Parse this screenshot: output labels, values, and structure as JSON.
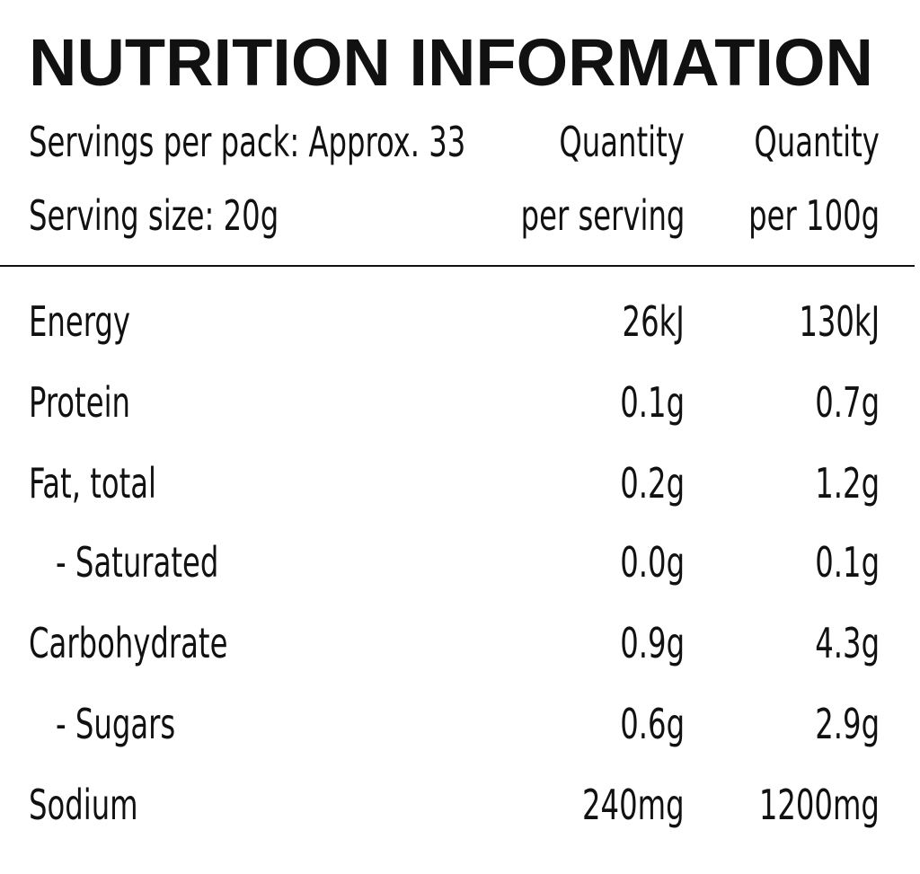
{
  "title": "NUTRITION INFORMATION",
  "header": {
    "servings_per_pack": "Servings per pack: Approx. 33",
    "serving_size": "Serving size: 20g",
    "col_per_serving_line1": "Quantity",
    "col_per_serving_line2": "per serving",
    "col_per_100g_line1": "Quantity",
    "col_per_100g_line2": "per 100g"
  },
  "rows": [
    {
      "label": "Energy",
      "per_serving": "26kJ",
      "per_100g": "130kJ"
    },
    {
      "label": "Protein",
      "per_serving": "0.1g",
      "per_100g": "0.7g"
    },
    {
      "label": "Fat, total",
      "per_serving": "0.2g",
      "per_100g": "1.2g"
    },
    {
      "label": "- Saturated",
      "per_serving": "0.0g",
      "per_100g": "0.1g"
    },
    {
      "label": "Carbohydrate",
      "per_serving": "0.9g",
      "per_100g": "4.3g"
    },
    {
      "label": "- Sugars",
      "per_serving": "0.6g",
      "per_100g": "2.9g"
    },
    {
      "label": "Sodium",
      "per_serving": "240mg",
      "per_100g": "1200mg"
    }
  ]
}
